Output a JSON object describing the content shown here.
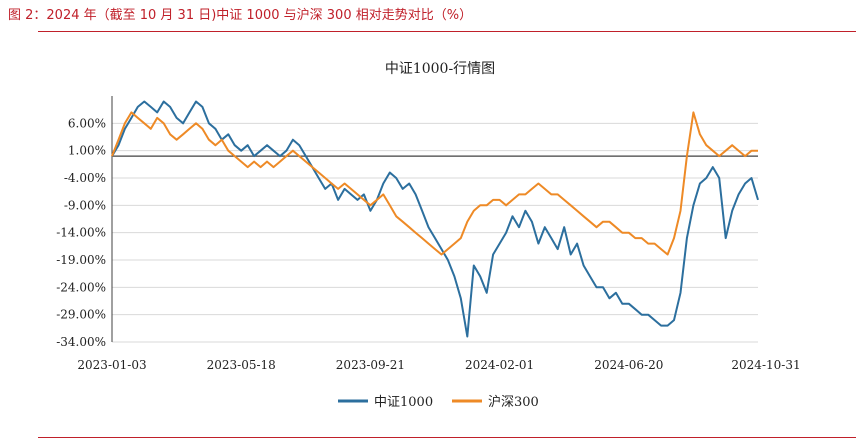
{
  "caption": "图 2：2024 年（截至 10 月 31 日)中证 1000 与沪深 300 相对走势对比（%）",
  "colors": {
    "accent": "#c0202a",
    "series1": "#2c6f9e",
    "series2": "#ee8a26",
    "grid": "#d9d9d9",
    "axis": "#404040"
  },
  "chart_data": {
    "type": "line",
    "title": "中证1000-行情图",
    "xlabel": "",
    "ylabel": "",
    "ylim": [
      -34,
      11
    ],
    "yticks": [
      6,
      1,
      -4,
      -9,
      -14,
      -19,
      -24,
      -29,
      -34
    ],
    "ytick_labels": [
      "6.00%",
      "1.00%",
      "-4.00%",
      "-9.00%",
      "-14.00%",
      "-19.00%",
      "-24.00%",
      "-29.00%",
      "-34.00%"
    ],
    "xlim": [
      0,
      100
    ],
    "xticks": [
      0,
      20,
      40,
      60,
      80,
      100
    ],
    "xtick_labels": [
      "2023-01-03",
      "2023-05-18",
      "2023-09-21",
      "2024-02-01",
      "2024-06-20",
      "2024-10-31"
    ],
    "legend": [
      "中证1000",
      "沪深300"
    ],
    "legend_position": "bottom-center",
    "series": [
      {
        "name": "中证1000",
        "color": "#2c6f9e",
        "x": [
          0,
          1,
          2,
          3,
          4,
          5,
          6,
          7,
          8,
          9,
          10,
          11,
          12,
          13,
          14,
          15,
          16,
          17,
          18,
          19,
          20,
          21,
          22,
          23,
          24,
          25,
          26,
          27,
          28,
          29,
          30,
          31,
          32,
          33,
          34,
          35,
          36,
          37,
          38,
          39,
          40,
          41,
          42,
          43,
          44,
          45,
          46,
          47,
          48,
          49,
          50,
          51,
          52,
          53,
          54,
          55,
          56,
          57,
          58,
          59,
          60,
          61,
          62,
          63,
          64,
          65,
          66,
          67,
          68,
          69,
          70,
          71,
          72,
          73,
          74,
          75,
          76,
          77,
          78,
          79,
          80,
          81,
          82,
          83,
          84,
          85,
          86,
          87,
          88,
          89,
          90,
          91,
          92,
          93,
          94,
          95,
          96,
          97,
          98,
          99,
          100
        ],
        "values": [
          0,
          2,
          5,
          7,
          9,
          10,
          9,
          8,
          10,
          9,
          7,
          6,
          8,
          10,
          9,
          6,
          5,
          3,
          4,
          2,
          1,
          2,
          0,
          1,
          2,
          1,
          0,
          1,
          3,
          2,
          0,
          -2,
          -4,
          -6,
          -5,
          -8,
          -6,
          -7,
          -8,
          -7,
          -10,
          -8,
          -5,
          -3,
          -4,
          -6,
          -5,
          -7,
          -10,
          -13,
          -15,
          -17,
          -19,
          -22,
          -26,
          -33,
          -20,
          -22,
          -25,
          -18,
          -16,
          -14,
          -11,
          -13,
          -10,
          -12,
          -16,
          -13,
          -15,
          -17,
          -13,
          -18,
          -16,
          -20,
          -22,
          -24,
          -24,
          -26,
          -25,
          -27,
          -27,
          -28,
          -29,
          -29,
          -30,
          -31,
          -31,
          -30,
          -25,
          -15,
          -9,
          -5,
          -4,
          -2,
          -4,
          -15,
          -10,
          -7,
          -5,
          -4,
          -8
        ]
      },
      {
        "name": "沪深300",
        "color": "#ee8a26",
        "x": [
          0,
          1,
          2,
          3,
          4,
          5,
          6,
          7,
          8,
          9,
          10,
          11,
          12,
          13,
          14,
          15,
          16,
          17,
          18,
          19,
          20,
          21,
          22,
          23,
          24,
          25,
          26,
          27,
          28,
          29,
          30,
          31,
          32,
          33,
          34,
          35,
          36,
          37,
          38,
          39,
          40,
          41,
          42,
          43,
          44,
          45,
          46,
          47,
          48,
          49,
          50,
          51,
          52,
          53,
          54,
          55,
          56,
          57,
          58,
          59,
          60,
          61,
          62,
          63,
          64,
          65,
          66,
          67,
          68,
          69,
          70,
          71,
          72,
          73,
          74,
          75,
          76,
          77,
          78,
          79,
          80,
          81,
          82,
          83,
          84,
          85,
          86,
          87,
          88,
          89,
          90,
          91,
          92,
          93,
          94,
          95,
          96,
          97,
          98,
          99,
          100
        ],
        "values": [
          0,
          3,
          6,
          8,
          7,
          6,
          5,
          7,
          6,
          4,
          3,
          4,
          5,
          6,
          5,
          3,
          2,
          3,
          1,
          0,
          -1,
          -2,
          -1,
          -2,
          -1,
          -2,
          -1,
          0,
          1,
          0,
          -1,
          -2,
          -3,
          -4,
          -5,
          -6,
          -5,
          -6,
          -7,
          -8,
          -9,
          -8,
          -7,
          -9,
          -11,
          -12,
          -13,
          -14,
          -15,
          -16,
          -17,
          -18,
          -17,
          -16,
          -15,
          -12,
          -10,
          -9,
          -9,
          -8,
          -8,
          -9,
          -8,
          -7,
          -7,
          -6,
          -5,
          -6,
          -7,
          -7,
          -8,
          -9,
          -10,
          -11,
          -12,
          -13,
          -12,
          -12,
          -13,
          -14,
          -14,
          -15,
          -15,
          -16,
          -16,
          -17,
          -18,
          -15,
          -10,
          0,
          8,
          4,
          2,
          1,
          0,
          1,
          2,
          1,
          0,
          1,
          1
        ]
      }
    ]
  }
}
